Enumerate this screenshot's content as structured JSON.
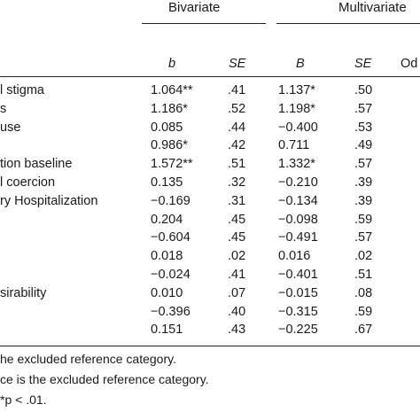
{
  "header": {
    "bivariate": "Bivariate",
    "multivariate": "Multivariate",
    "col_b": "b",
    "col_se1": "SE",
    "col_B": "B",
    "col_se2": "SE",
    "col_odds": "Od"
  },
  "rows": [
    {
      "label": "l stigma",
      "b": "1.064**",
      "se1": ".41",
      "B": "1.137*",
      "se2": ".50"
    },
    {
      "label": "s",
      "b": "1.186*",
      "se1": ".52",
      "B": "1.198*",
      "se2": ".57"
    },
    {
      "label": "use",
      "b": "0.085",
      "se1": ".44",
      "B": "−0.400",
      "se2": ".53"
    },
    {
      "label": "",
      "b": "0.986*",
      "se1": ".42",
      "B": "0.711",
      "se2": ".49"
    },
    {
      "label": "tion baseline",
      "b": "1.572**",
      "se1": ".51",
      "B": "1.332*",
      "se2": ".57"
    },
    {
      "label": "l coercion",
      "b": "0.135",
      "se1": ".32",
      "B": "−0.210",
      "se2": ".39"
    },
    {
      "label": "ry Hospitalization",
      "b": "−0.169",
      "se1": ".31",
      "B": "−0.134",
      "se2": ".39"
    },
    {
      "label": "",
      "b": "0.204",
      "se1": ".45",
      "B": "−0.098",
      "se2": ".59"
    },
    {
      "label": "",
      "b": "−0.604",
      "se1": ".45",
      "B": "−0.491",
      "se2": ".57"
    },
    {
      "label": "",
      "b": "0.018",
      "se1": ".02",
      "B": "0.016",
      "se2": ".02"
    },
    {
      "label": "",
      "b": "−0.024",
      "se1": ".41",
      "B": "−0.401",
      "se2": ".51"
    },
    {
      "label": "sirability",
      "b": "0.010",
      "se1": ".07",
      "B": "−0.015",
      "se2": ".08"
    },
    {
      "label": "",
      "b": "−0.396",
      "se1": ".40",
      "B": "−0.315",
      "se2": ".59"
    },
    {
      "label": "",
      "b": "0.151",
      "se1": ".43",
      "B": "−0.225",
      "se2": ".67"
    }
  ],
  "footnotes": [
    "he excluded reference category.",
    "ce is the excluded reference category.",
    "*p < .01."
  ]
}
